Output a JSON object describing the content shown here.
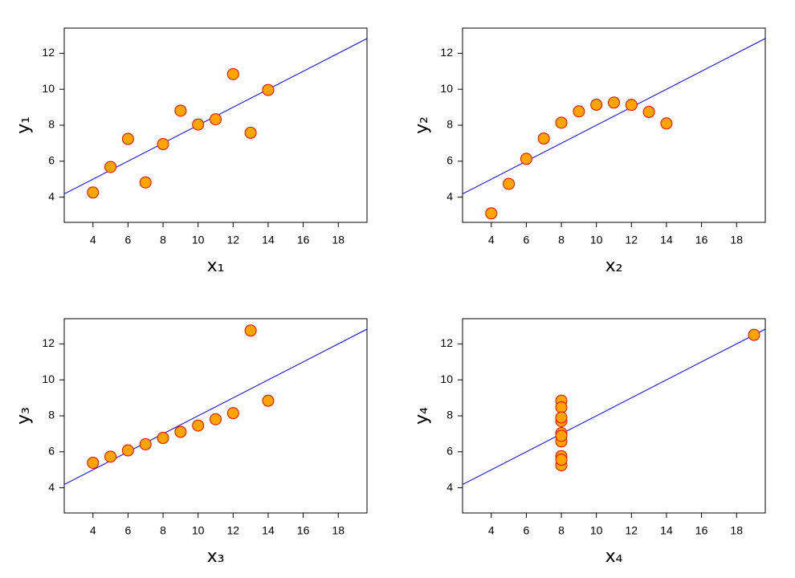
{
  "chart_data": [
    {
      "type": "scatter",
      "xlabel": "x₁",
      "ylabel": "y₁",
      "x": [
        10,
        8,
        13,
        9,
        11,
        14,
        6,
        4,
        12,
        7,
        5
      ],
      "values": [
        8.04,
        6.95,
        7.58,
        8.81,
        8.33,
        9.96,
        7.24,
        4.26,
        10.84,
        4.82,
        5.68
      ],
      "color": "#ffa500",
      "edge_color": "#ff0000",
      "fit": {
        "intercept": 3,
        "slope": 0.5,
        "color": "#0000ff"
      },
      "xlim": [
        2.36,
        19.64
      ],
      "ylim": [
        2.6,
        13.4
      ],
      "xticks": [
        4,
        6,
        8,
        10,
        12,
        14,
        16,
        18
      ],
      "yticks": [
        4,
        6,
        8,
        10,
        12
      ]
    },
    {
      "type": "scatter",
      "xlabel": "x₂",
      "ylabel": "y₂",
      "x": [
        10,
        8,
        13,
        9,
        11,
        14,
        6,
        4,
        12,
        7,
        5
      ],
      "values": [
        9.14,
        8.14,
        8.74,
        8.77,
        9.26,
        8.1,
        6.13,
        3.1,
        9.13,
        7.26,
        4.74
      ],
      "color": "#ffa500",
      "edge_color": "#ff0000",
      "fit": {
        "intercept": 3,
        "slope": 0.5,
        "color": "#0000ff"
      },
      "xlim": [
        2.36,
        19.64
      ],
      "ylim": [
        2.6,
        13.4
      ],
      "xticks": [
        4,
        6,
        8,
        10,
        12,
        14,
        16,
        18
      ],
      "yticks": [
        4,
        6,
        8,
        10,
        12
      ]
    },
    {
      "type": "scatter",
      "xlabel": "x₃",
      "ylabel": "y₃",
      "x": [
        10,
        8,
        13,
        9,
        11,
        14,
        6,
        4,
        12,
        7,
        5
      ],
      "values": [
        7.46,
        6.77,
        12.74,
        7.11,
        7.81,
        8.84,
        6.08,
        5.39,
        8.15,
        6.42,
        5.73
      ],
      "color": "#ffa500",
      "edge_color": "#ff0000",
      "fit": {
        "intercept": 3,
        "slope": 0.5,
        "color": "#0000ff"
      },
      "xlim": [
        2.36,
        19.64
      ],
      "ylim": [
        2.6,
        13.4
      ],
      "xticks": [
        4,
        6,
        8,
        10,
        12,
        14,
        16,
        18
      ],
      "yticks": [
        4,
        6,
        8,
        10,
        12
      ]
    },
    {
      "type": "scatter",
      "xlabel": "x₄",
      "ylabel": "y₄",
      "x": [
        8,
        8,
        8,
        8,
        8,
        8,
        8,
        19,
        8,
        8,
        8
      ],
      "values": [
        6.58,
        5.76,
        7.71,
        8.84,
        8.47,
        7.04,
        5.25,
        12.5,
        5.56,
        7.91,
        6.89
      ],
      "color": "#ffa500",
      "edge_color": "#ff0000",
      "fit": {
        "intercept": 3,
        "slope": 0.5,
        "color": "#0000ff"
      },
      "xlim": [
        2.36,
        19.64
      ],
      "ylim": [
        2.6,
        13.4
      ],
      "xticks": [
        4,
        6,
        8,
        10,
        12,
        14,
        16,
        18
      ],
      "yticks": [
        4,
        6,
        8,
        10,
        12
      ]
    }
  ]
}
